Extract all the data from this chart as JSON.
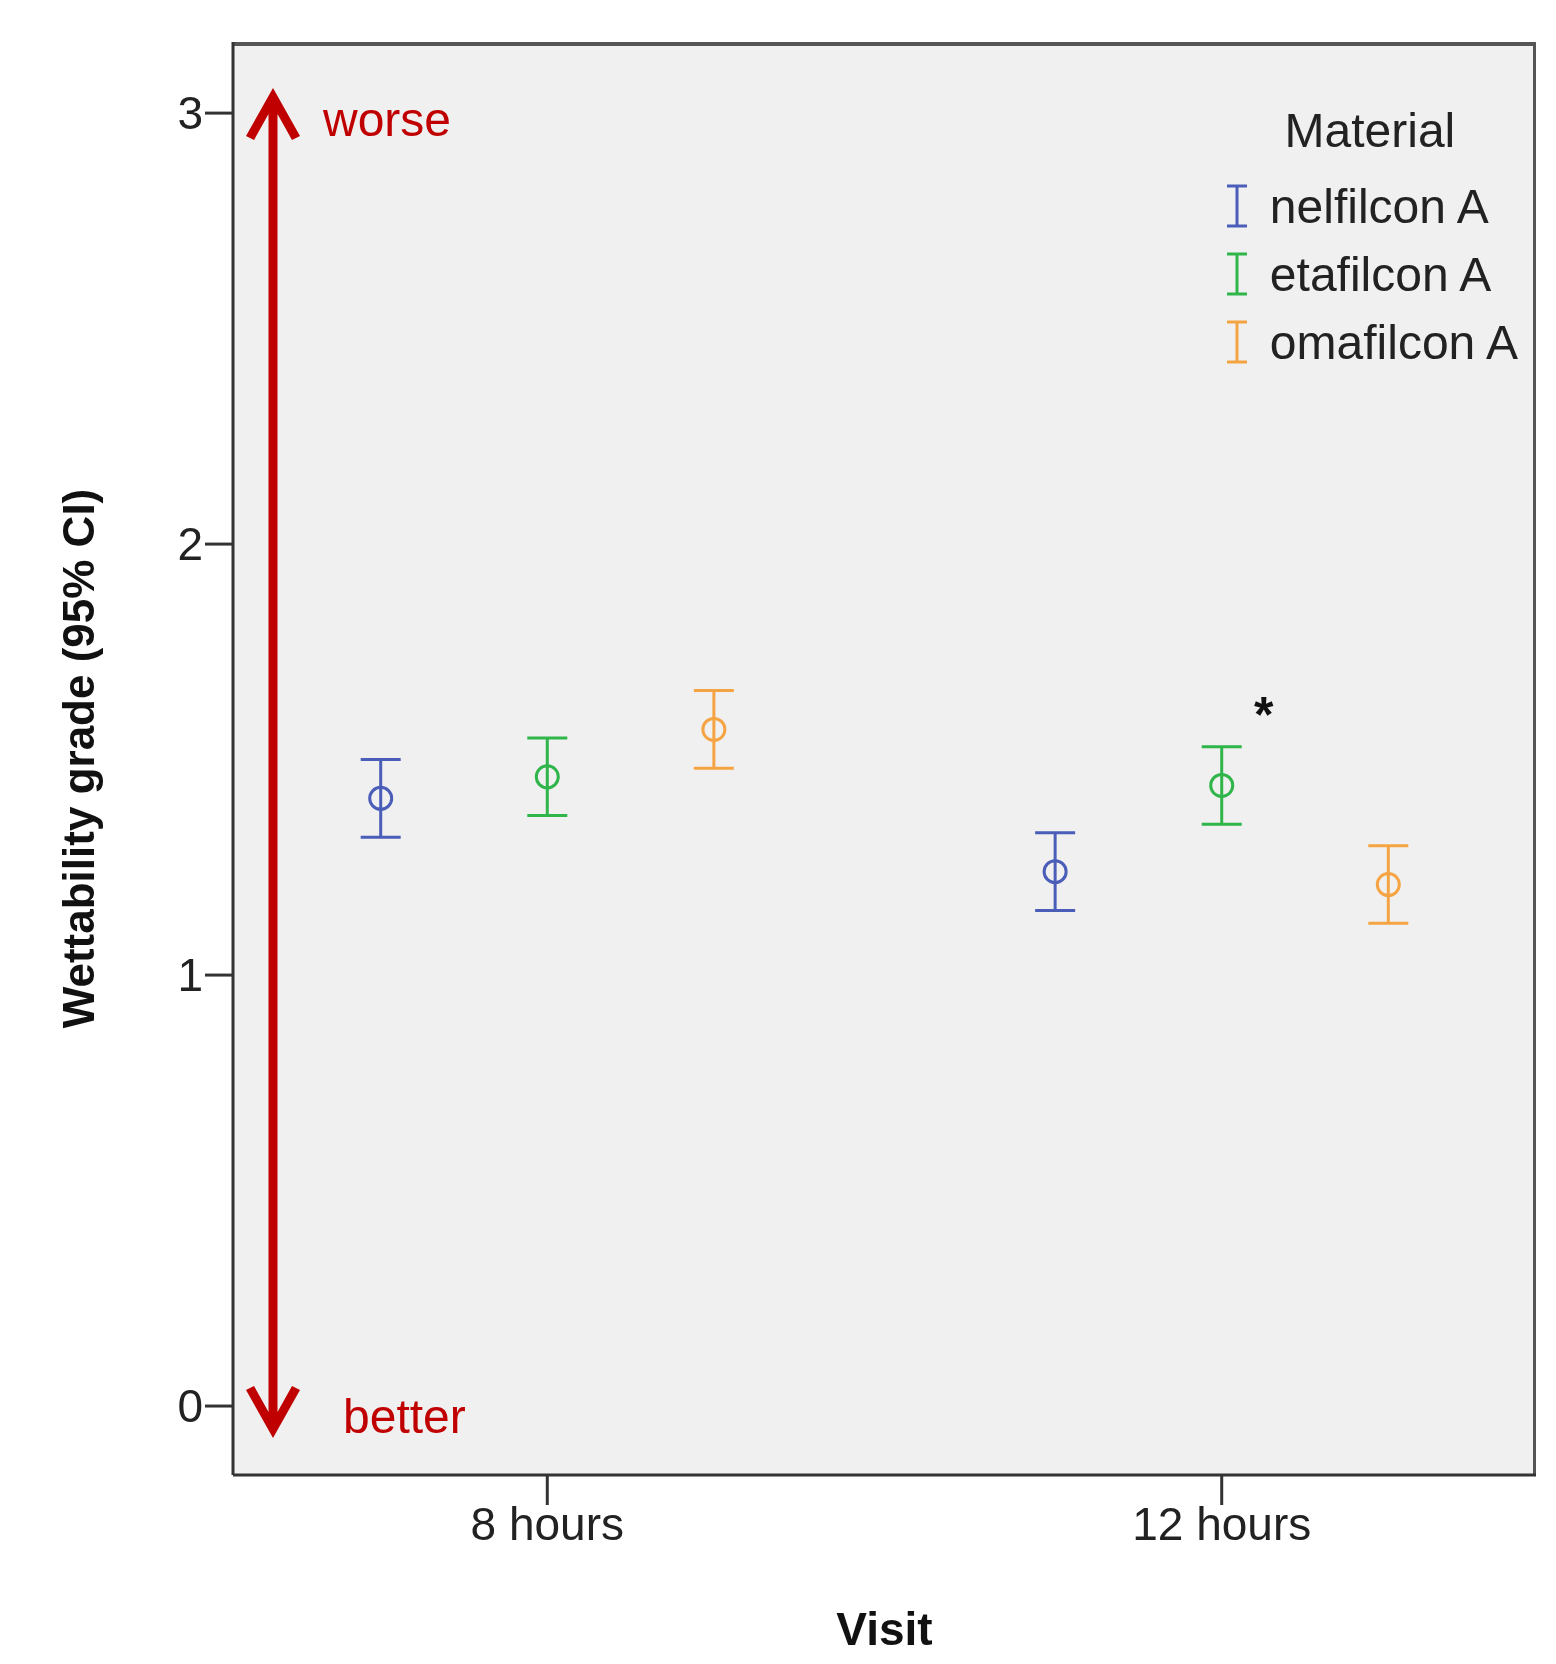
{
  "chart_data": {
    "type": "scatter",
    "xlabel": "Visit",
    "ylabel": "Wettability grade (95% CI)",
    "legend_title": "Material",
    "categories": [
      "8 hours",
      "12 hours"
    ],
    "series": [
      {
        "name": "nelfilcon A",
        "color": "#4a5db8",
        "values": [
          1.41,
          1.24
        ],
        "errors": [
          [
            1.32,
            1.5
          ],
          [
            1.15,
            1.33
          ]
        ]
      },
      {
        "name": "etafilcon A",
        "color": "#2fb54a",
        "values": [
          1.46,
          1.44
        ],
        "errors": [
          [
            1.37,
            1.55
          ],
          [
            1.35,
            1.53
          ]
        ]
      },
      {
        "name": "omafilcon A",
        "color": "#f5a443",
        "values": [
          1.57,
          1.21
        ],
        "errors": [
          [
            1.48,
            1.66
          ],
          [
            1.12,
            1.3
          ]
        ]
      }
    ],
    "ylim": [
      -0.16,
      3.165
    ],
    "yticks": [
      0,
      1,
      2,
      3
    ],
    "legend": "top right",
    "marker": "circle",
    "annotations": [
      "worse",
      "better",
      "*"
    ]
  }
}
